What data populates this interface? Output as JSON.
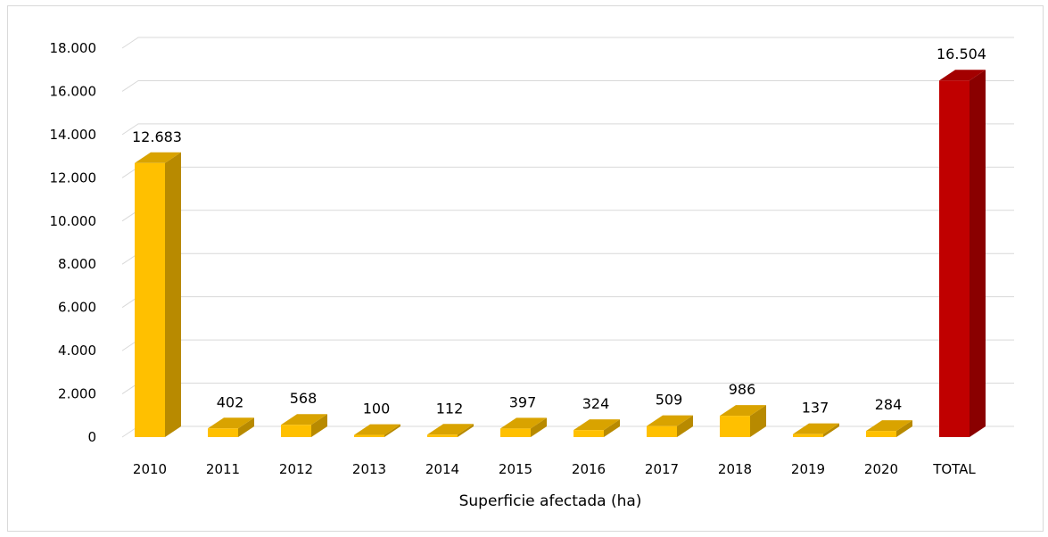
{
  "chart_data": {
    "type": "bar",
    "xlabel": "Superficie afectada (ha)",
    "ylim": [
      0,
      18000
    ],
    "y_ticks": [
      0,
      2000,
      4000,
      6000,
      8000,
      10000,
      12000,
      14000,
      16000,
      18000
    ],
    "y_tick_labels": [
      "0",
      "2.000",
      "4.000",
      "6.000",
      "8.000",
      "10.000",
      "12.000",
      "14.000",
      "16.000",
      "18.000"
    ],
    "categories": [
      "2010",
      "2011",
      "2012",
      "2013",
      "2014",
      "2015",
      "2016",
      "2017",
      "2018",
      "2019",
      "2020",
      "TOTAL"
    ],
    "values": [
      12683,
      402,
      568,
      100,
      112,
      397,
      324,
      509,
      986,
      137,
      284,
      16504
    ],
    "value_labels": [
      "12.683",
      "402",
      "568",
      "100",
      "112",
      "397",
      "324",
      "509",
      "986",
      "137",
      "284",
      "16.504"
    ],
    "colors": [
      "#FFC000",
      "#FFC000",
      "#FFC000",
      "#FFC000",
      "#FFC000",
      "#FFC000",
      "#FFC000",
      "#FFC000",
      "#FFC000",
      "#FFC000",
      "#FFC000",
      "#C00000"
    ],
    "grid": true,
    "legend": "none",
    "style": "3d-column"
  }
}
